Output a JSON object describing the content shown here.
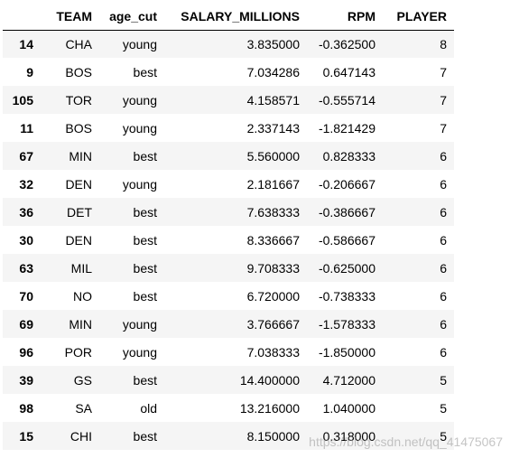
{
  "table": {
    "columns": [
      "",
      "TEAM",
      "age_cut",
      "SALARY_MILLIONS",
      "RPM",
      "PLAYER"
    ],
    "rows": [
      {
        "index": "14",
        "team": "CHA",
        "age_cut": "young",
        "salary": "3.835000",
        "rpm": "-0.362500",
        "player": "8"
      },
      {
        "index": "9",
        "team": "BOS",
        "age_cut": "best",
        "salary": "7.034286",
        "rpm": "0.647143",
        "player": "7"
      },
      {
        "index": "105",
        "team": "TOR",
        "age_cut": "young",
        "salary": "4.158571",
        "rpm": "-0.555714",
        "player": "7"
      },
      {
        "index": "11",
        "team": "BOS",
        "age_cut": "young",
        "salary": "2.337143",
        "rpm": "-1.821429",
        "player": "7"
      },
      {
        "index": "67",
        "team": "MIN",
        "age_cut": "best",
        "salary": "5.560000",
        "rpm": "0.828333",
        "player": "6"
      },
      {
        "index": "32",
        "team": "DEN",
        "age_cut": "young",
        "salary": "2.181667",
        "rpm": "-0.206667",
        "player": "6"
      },
      {
        "index": "36",
        "team": "DET",
        "age_cut": "best",
        "salary": "7.638333",
        "rpm": "-0.386667",
        "player": "6"
      },
      {
        "index": "30",
        "team": "DEN",
        "age_cut": "best",
        "salary": "8.336667",
        "rpm": "-0.586667",
        "player": "6"
      },
      {
        "index": "63",
        "team": "MIL",
        "age_cut": "best",
        "salary": "9.708333",
        "rpm": "-0.625000",
        "player": "6"
      },
      {
        "index": "70",
        "team": "NO",
        "age_cut": "best",
        "salary": "6.720000",
        "rpm": "-0.738333",
        "player": "6"
      },
      {
        "index": "69",
        "team": "MIN",
        "age_cut": "young",
        "salary": "3.766667",
        "rpm": "-1.578333",
        "player": "6"
      },
      {
        "index": "96",
        "team": "POR",
        "age_cut": "young",
        "salary": "7.038333",
        "rpm": "-1.850000",
        "player": "6"
      },
      {
        "index": "39",
        "team": "GS",
        "age_cut": "best",
        "salary": "14.400000",
        "rpm": "4.712000",
        "player": "5"
      },
      {
        "index": "98",
        "team": "SA",
        "age_cut": "old",
        "salary": "13.216000",
        "rpm": "1.040000",
        "player": "5"
      },
      {
        "index": "15",
        "team": "CHI",
        "age_cut": "best",
        "salary": "8.150000",
        "rpm": "0.318000",
        "player": "5"
      }
    ]
  },
  "watermark": "https://blog.csdn.net/qq_41475067",
  "colors": {
    "row_stripe": "#f5f5f5",
    "background": "#ffffff",
    "text": "#000000"
  }
}
